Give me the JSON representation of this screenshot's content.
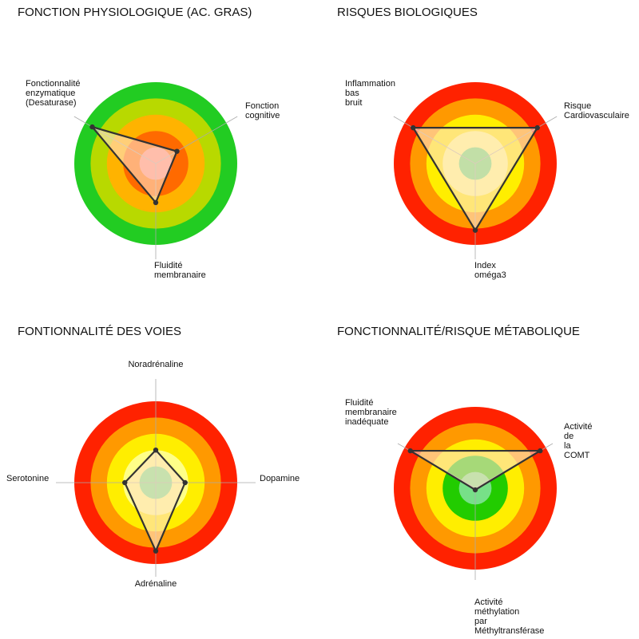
{
  "chart_data": [
    {
      "type": "radar",
      "title": "FONCTION PHYSIOLOGIQUE (AC. GRAS)",
      "axes": [
        [
          "Fonctionnalité",
          "enzymatique",
          "(Desaturase)"
        ],
        [
          "Fonction",
          "cognitive"
        ],
        [
          "Fluidité",
          "membranaire"
        ]
      ],
      "values": [
        4.5,
        1.5,
        2.4
      ],
      "rlim": [
        0,
        5
      ],
      "rticks": [
        1,
        2,
        3,
        4,
        5
      ],
      "ring_colors": [
        "#ff8a80",
        "#ff6a00",
        "#ffb300",
        "#b8d900",
        "#22cc22"
      ]
    },
    {
      "type": "radar",
      "title": "RISQUES BIOLOGIQUES",
      "axes": [
        [
          "Inflammation",
          "bas",
          "bruit"
        ],
        [
          "Risque",
          "Cardiovasculaire"
        ],
        [
          "Index",
          "oméga3"
        ]
      ],
      "values": [
        4.4,
        4.4,
        4.1
      ],
      "rlim": [
        0,
        5
      ],
      "rticks": [
        1,
        2,
        3,
        4,
        5
      ],
      "ring_colors": [
        "#66dd77",
        "#ffff88",
        "#ffee00",
        "#ff9900",
        "#ff2200"
      ]
    },
    {
      "type": "radar",
      "title": "FONTIONNALITÉ DES VOIES",
      "axes": [
        [
          "Noradrénaline"
        ],
        [
          "Dopamine"
        ],
        [
          "Adrénaline"
        ],
        [
          "Serotonine"
        ]
      ],
      "values": [
        2.0,
        1.8,
        4.2,
        1.9
      ],
      "rlim": [
        0,
        5
      ],
      "rticks": [
        1,
        2,
        3,
        4,
        5
      ],
      "ring_colors": [
        "#77e088",
        "#ffff88",
        "#ffee00",
        "#ff9900",
        "#ff2200"
      ]
    },
    {
      "type": "radar",
      "title": "FONCTIONNALITÉ/RISQUE MÉTABOLIQUE",
      "axes": [
        [
          "Fluidité",
          "membranaire",
          "inadéquate"
        ],
        [
          "Activité",
          "de",
          "la",
          "COMT"
        ],
        [
          "Activité",
          "méthylation",
          "par",
          "Méthyltransférase"
        ]
      ],
      "values": [
        4.6,
        4.6,
        0.1
      ],
      "rlim": [
        0,
        5
      ],
      "rticks": [
        1,
        2,
        3,
        4,
        5
      ],
      "ring_colors": [
        "#77e088",
        "#22cc00",
        "#ffee00",
        "#ff9900",
        "#ff2200"
      ]
    }
  ]
}
